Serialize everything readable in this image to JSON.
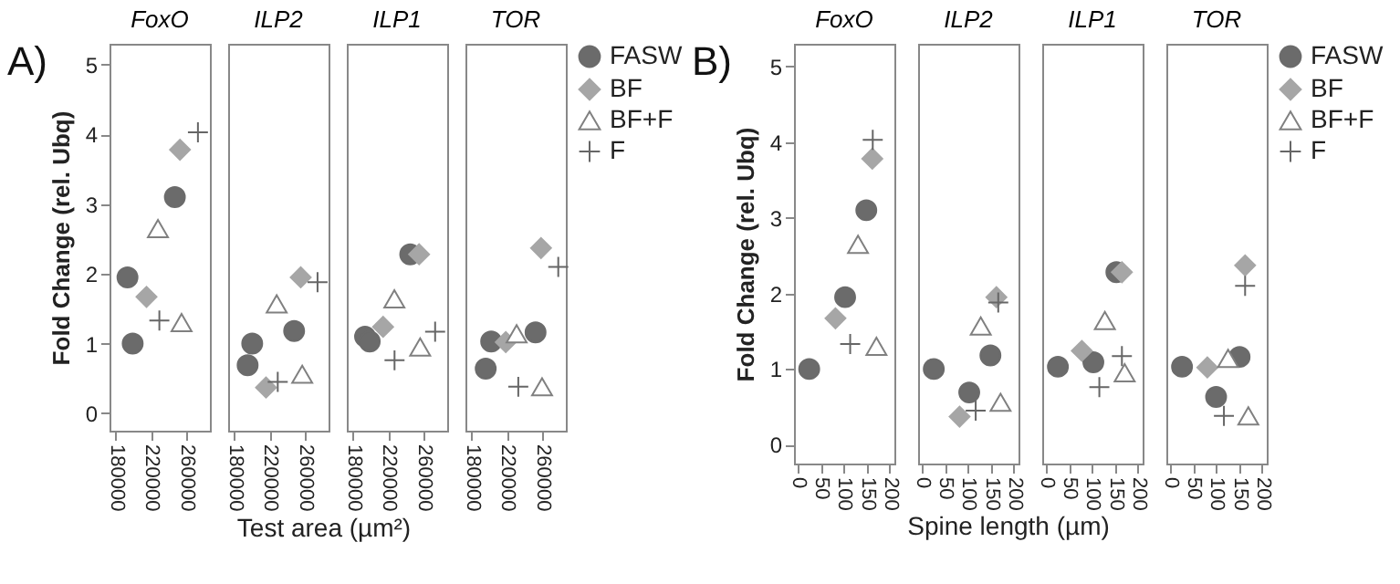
{
  "chart_data": [
    {
      "type": "scatter",
      "title": "FoxO",
      "annotations": [
        "A)"
      ],
      "ylabel": "Fold Change (rel. Ubq)",
      "xlabel": "Test area (µm²)",
      "xlim": [
        173000,
        287000
      ],
      "xticks": [
        180000,
        220000,
        260000
      ],
      "ylim": [
        -0.25,
        5.3
      ],
      "yticks": [
        0,
        1,
        2,
        3,
        4,
        5
      ],
      "series": [
        {
          "color": "#6b6b6b",
          "marker": "circle",
          "x": [
            193400,
            199300,
            247200
          ],
          "values": [
            1.95,
            1.0,
            3.1
          ]
        },
        {
          "color": "#a6a6a6",
          "marker": "diamond",
          "x": [
            215000,
            253000
          ],
          "values": [
            1.67,
            3.78
          ]
        },
        {
          "color": "#808080",
          "marker": "triangle",
          "x": [
            228000,
            254800
          ],
          "values": [
            2.65,
            1.3
          ]
        },
        {
          "color": "#666666",
          "marker": "cross",
          "x": [
            229600,
            273400
          ],
          "values": [
            1.33,
            4.03
          ]
        }
      ]
    },
    {
      "type": "scatter",
      "title": "ILP2",
      "tick_labels": "x",
      "xlim": [
        173000,
        287000
      ],
      "xticks": [
        180000,
        220000,
        260000
      ],
      "ylim": [
        -0.25,
        5.3
      ],
      "yticks": [
        0,
        1,
        2,
        3,
        4,
        5
      ],
      "series": [
        {
          "color": "#6b6b6b",
          "marker": "circle",
          "x": [
            200300,
            195100,
            247900
          ],
          "values": [
            1.0,
            0.69,
            1.18
          ]
        },
        {
          "color": "#a6a6a6",
          "marker": "diamond",
          "x": [
            216000,
            255400
          ],
          "values": [
            0.37,
            1.95
          ]
        },
        {
          "color": "#808080",
          "marker": "triangle",
          "x": [
            228100,
            257100
          ],
          "values": [
            1.57,
            0.56
          ]
        },
        {
          "color": "#666666",
          "marker": "cross",
          "x": [
            229300,
            274500
          ],
          "values": [
            0.45,
            1.88
          ]
        }
      ]
    },
    {
      "type": "scatter",
      "title": "ILP1",
      "tick_labels": "x",
      "xlim": [
        173000,
        287000
      ],
      "xticks": [
        180000,
        220000,
        260000
      ],
      "ylim": [
        -0.25,
        5.3
      ],
      "yticks": [
        0,
        1,
        2,
        3,
        4,
        5
      ],
      "series": [
        {
          "color": "#6b6b6b",
          "marker": "circle",
          "x": [
            193700,
            199000,
            245000
          ],
          "values": [
            1.1,
            1.03,
            2.28
          ]
        },
        {
          "color": "#a6a6a6",
          "marker": "diamond",
          "x": [
            214200,
            255100
          ],
          "values": [
            1.24,
            2.28
          ]
        },
        {
          "color": "#808080",
          "marker": "triangle",
          "x": [
            227000,
            256300
          ],
          "values": [
            1.64,
            0.95
          ]
        },
        {
          "color": "#666666",
          "marker": "cross",
          "x": [
            227200,
            273300
          ],
          "values": [
            0.76,
            1.17
          ]
        }
      ]
    },
    {
      "type": "scatter",
      "title": "TOR",
      "tick_labels": "x",
      "legend": "top right",
      "xlim": [
        173000,
        287000
      ],
      "xticks": [
        180000,
        220000,
        260000
      ],
      "ylim": [
        -0.25,
        5.3
      ],
      "yticks": [
        0,
        1,
        2,
        3,
        4,
        5
      ],
      "series": [
        {
          "name": "FASW",
          "color": "#6b6b6b",
          "marker": "circle",
          "x": [
            196000,
            202200,
            252600
          ],
          "values": [
            0.64,
            1.03,
            1.16
          ]
        },
        {
          "name": "BF",
          "color": "#a6a6a6",
          "marker": "diamond",
          "x": [
            218800,
            258800
          ],
          "values": [
            1.02,
            2.37
          ]
        },
        {
          "name": "BF+F",
          "color": "#808080",
          "marker": "triangle",
          "x": [
            231100,
            260000
          ],
          "values": [
            1.14,
            0.38
          ]
        },
        {
          "name": "F",
          "color": "#666666",
          "marker": "cross",
          "x": [
            233000,
            278400
          ],
          "values": [
            0.38,
            2.1
          ]
        }
      ]
    },
    {
      "type": "scatter",
      "title": "FoxO",
      "annotations": [
        "B)"
      ],
      "ylabel": "Fold Change (rel. Ubq)",
      "xlabel": "Spine length (µm)",
      "xlim": [
        -8,
        210
      ],
      "xticks": [
        0,
        50,
        100,
        150,
        200
      ],
      "ylim": [
        -0.25,
        5.3
      ],
      "yticks": [
        0,
        1,
        2,
        3,
        4,
        5
      ],
      "series": [
        {
          "color": "#6b6b6b",
          "marker": "circle",
          "x": [
            25,
            103,
            149
          ],
          "values": [
            1.0,
            1.95,
            3.1
          ]
        },
        {
          "color": "#a6a6a6",
          "marker": "diamond",
          "x": [
            82,
            162
          ],
          "values": [
            1.67,
            3.78
          ]
        },
        {
          "color": "#808080",
          "marker": "triangle",
          "x": [
            131,
            171
          ],
          "values": [
            2.65,
            1.3
          ]
        },
        {
          "color": "#666666",
          "marker": "cross",
          "x": [
            114,
            163
          ],
          "values": [
            1.33,
            4.03
          ]
        }
      ]
    },
    {
      "type": "scatter",
      "title": "ILP2",
      "tick_labels": "x",
      "xlim": [
        -8,
        210
      ],
      "xticks": [
        0,
        50,
        100,
        150,
        200
      ],
      "ylim": [
        -0.25,
        5.3
      ],
      "yticks": [
        0,
        1,
        2,
        3,
        4,
        5
      ],
      "series": [
        {
          "color": "#6b6b6b",
          "marker": "circle",
          "x": [
            26,
            103,
            149
          ],
          "values": [
            1.0,
            0.69,
            1.18
          ]
        },
        {
          "color": "#a6a6a6",
          "marker": "diamond",
          "x": [
            82,
            162
          ],
          "values": [
            0.37,
            1.95
          ]
        },
        {
          "color": "#808080",
          "marker": "triangle",
          "x": [
            128,
            171
          ],
          "values": [
            1.57,
            0.56
          ]
        },
        {
          "color": "#666666",
          "marker": "cross",
          "x": [
            117,
            166
          ],
          "values": [
            0.45,
            1.88
          ]
        }
      ]
    },
    {
      "type": "scatter",
      "title": "ILP1",
      "tick_labels": "x",
      "xlim": [
        -8,
        210
      ],
      "xticks": [
        0,
        50,
        100,
        150,
        200
      ],
      "ylim": [
        -0.25,
        5.3
      ],
      "yticks": [
        0,
        1,
        2,
        3,
        4,
        5
      ],
      "series": [
        {
          "color": "#6b6b6b",
          "marker": "circle",
          "x": [
            26,
            103,
            153
          ],
          "values": [
            1.03,
            1.09,
            2.28
          ]
        },
        {
          "color": "#a6a6a6",
          "marker": "diamond",
          "x": [
            78,
            165
          ],
          "values": [
            1.24,
            2.28
          ]
        },
        {
          "color": "#808080",
          "marker": "triangle",
          "x": [
            128,
            171
          ],
          "values": [
            1.64,
            0.95
          ]
        },
        {
          "color": "#666666",
          "marker": "cross",
          "x": [
            116,
            165
          ],
          "values": [
            0.76,
            1.17
          ]
        }
      ]
    },
    {
      "type": "scatter",
      "title": "TOR",
      "tick_labels": "x",
      "legend": "top right",
      "xlim": [
        -8,
        210
      ],
      "xticks": [
        0,
        50,
        100,
        150,
        200
      ],
      "ylim": [
        -0.25,
        5.3
      ],
      "yticks": [
        0,
        1,
        2,
        3,
        4,
        5
      ],
      "series": [
        {
          "name": "FASW",
          "color": "#6b6b6b",
          "marker": "circle",
          "x": [
            26,
            100,
            151
          ],
          "values": [
            1.03,
            0.63,
            1.16
          ]
        },
        {
          "name": "BF",
          "color": "#a6a6a6",
          "marker": "diamond",
          "x": [
            81,
            163
          ],
          "values": [
            1.02,
            2.37
          ]
        },
        {
          "name": "BF+F",
          "color": "#808080",
          "marker": "triangle",
          "x": [
            126,
            170
          ],
          "values": [
            1.14,
            0.38
          ]
        },
        {
          "name": "F",
          "color": "#666666",
          "marker": "cross",
          "x": [
            117,
            163
          ],
          "values": [
            0.38,
            2.1
          ]
        }
      ]
    }
  ]
}
